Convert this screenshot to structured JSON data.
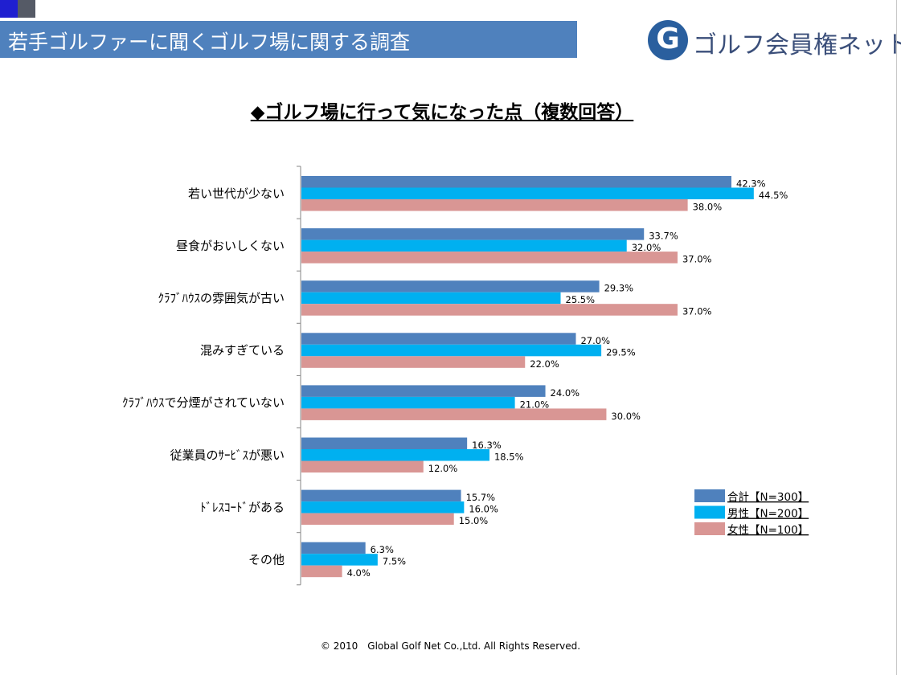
{
  "header": {
    "title": "若手ゴルファーに聞くゴルフ場に関する調査",
    "logo_mark": "G",
    "logo_text": "ゴルフ会員権ネット"
  },
  "footer": {
    "copyright": "© 2010　Global Golf Net Co.,Ltd. All Rights Reserved."
  },
  "chart_data": {
    "type": "bar",
    "orientation": "horizontal",
    "title": "◆ゴルフ場に行って気になった点（複数回答）",
    "categories": [
      "若い世代が少ない",
      "昼食がおいしくない",
      "ｸﾗﾌﾞﾊｳｽの雰囲気が古い",
      "混みすぎている",
      "ｸﾗﾌﾞﾊｳｽで分煙がされていない",
      "従業員のｻｰﾋﾞｽが悪い",
      "ﾄﾞﾚｽｺｰﾄﾞがある",
      "その他"
    ],
    "series": [
      {
        "name": "合計【N=300】",
        "color": "#4f81bd",
        "values": [
          42.3,
          33.7,
          29.3,
          27.0,
          24.0,
          16.3,
          15.7,
          6.3
        ]
      },
      {
        "name": "男性【N=200】",
        "color": "#00b0f0",
        "values": [
          44.5,
          32.0,
          25.5,
          29.5,
          21.0,
          18.5,
          16.0,
          7.5
        ]
      },
      {
        "name": "女性【N=100】",
        "color": "#d99694",
        "values": [
          38.0,
          37.0,
          37.0,
          22.0,
          30.0,
          12.0,
          15.0,
          4.0
        ]
      }
    ],
    "value_suffix": "%",
    "xlim": [
      0,
      50
    ],
    "grid": false,
    "legend_position": "bottom-right"
  }
}
